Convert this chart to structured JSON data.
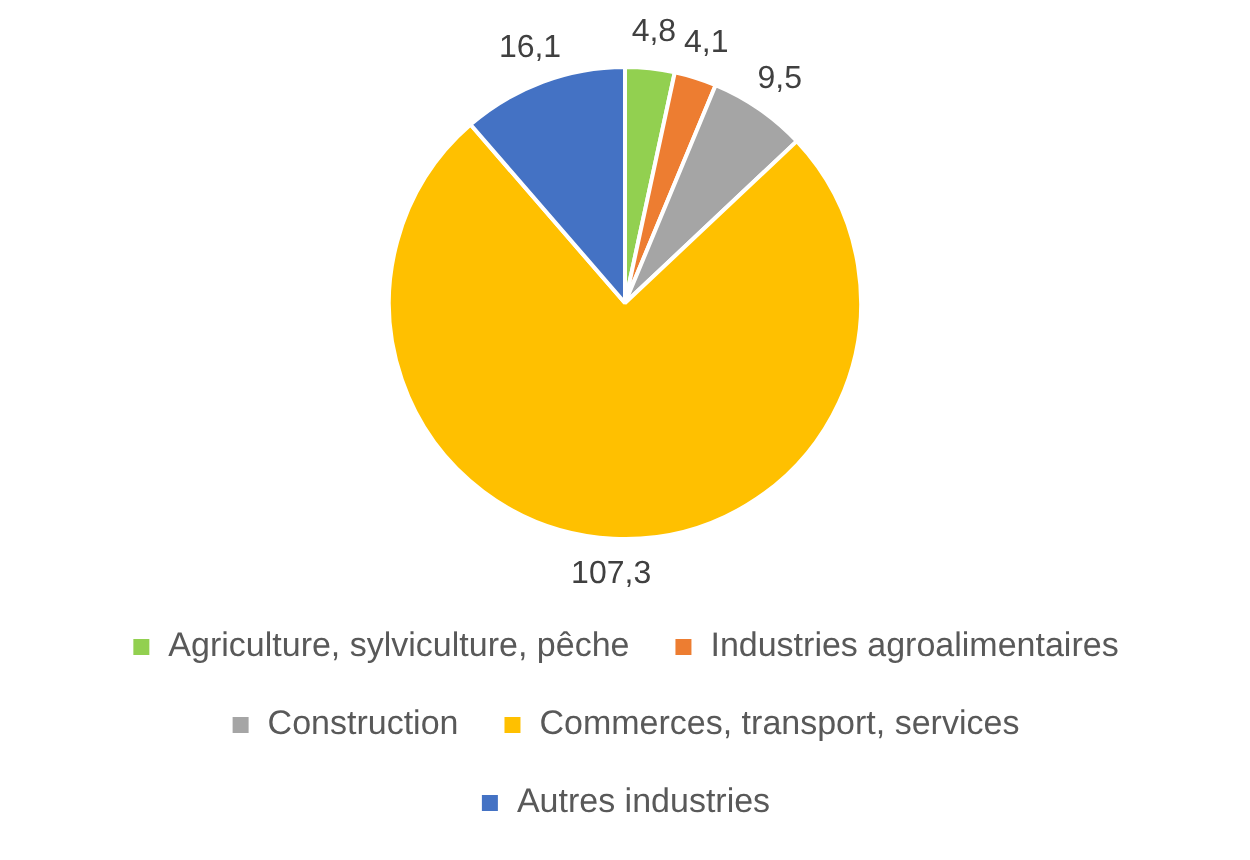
{
  "chart_data": {
    "type": "pie",
    "categories": [
      "Agriculture, sylviculture, pêche",
      "Industries agroalimentaires",
      "Construction",
      "Commerces, transport, services",
      "Autres industries"
    ],
    "values": [
      4.8,
      4.1,
      9.5,
      107.3,
      16.1
    ],
    "value_labels": [
      "4,8",
      "4,1",
      "9,5",
      "107,3",
      "16,1"
    ],
    "colors": [
      "#92d050",
      "#ed7d31",
      "#a5a5a5",
      "#ffc000",
      "#4472c4"
    ],
    "legend": "bottom"
  }
}
